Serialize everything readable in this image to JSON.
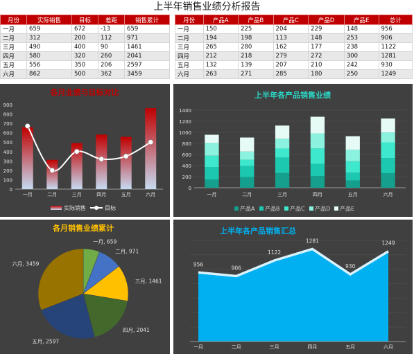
{
  "report_title": "上半年销售业绩分析报告",
  "table1": {
    "headers": [
      "月份",
      "实际销售",
      "目标",
      "差距",
      "销售累计"
    ],
    "rows": [
      [
        "一月",
        "659",
        "672",
        "-13",
        "659"
      ],
      [
        "二月",
        "312",
        "200",
        "112",
        "971"
      ],
      [
        "三月",
        "490",
        "400",
        "90",
        "1461"
      ],
      [
        "四月",
        "580",
        "320",
        "260",
        "2041"
      ],
      [
        "五月",
        "556",
        "350",
        "206",
        "2597"
      ],
      [
        "六月",
        "862",
        "500",
        "362",
        "3459"
      ]
    ]
  },
  "table2": {
    "headers": [
      "月份",
      "产品A",
      "产品B",
      "产品C",
      "产品D",
      "产品E",
      "总计"
    ],
    "rows": [
      [
        "一月",
        "150",
        "225",
        "204",
        "229",
        "148",
        "956"
      ],
      [
        "二月",
        "194",
        "198",
        "113",
        "148",
        "253",
        "906"
      ],
      [
        "三月",
        "265",
        "280",
        "162",
        "177",
        "238",
        "1122"
      ],
      [
        "四月",
        "212",
        "218",
        "279",
        "272",
        "300",
        "1281"
      ],
      [
        "五月",
        "132",
        "139",
        "207",
        "210",
        "242",
        "930"
      ],
      [
        "六月",
        "263",
        "271",
        "285",
        "180",
        "250",
        "1249"
      ]
    ]
  },
  "chart_data": [
    {
      "type": "bar",
      "title": "各月业绩与目标对比",
      "categories": [
        "一月",
        "二月",
        "三月",
        "四月",
        "五月",
        "六月"
      ],
      "series": [
        {
          "name": "实际销售",
          "kind": "bar",
          "values": [
            659,
            312,
            490,
            580,
            556,
            862
          ]
        },
        {
          "name": "目标",
          "kind": "line",
          "values": [
            672,
            200,
            400,
            320,
            350,
            500
          ]
        }
      ],
      "ylim": [
        0,
        900
      ],
      "yticks": [
        0,
        100,
        200,
        300,
        400,
        500,
        600,
        700,
        800,
        900
      ],
      "legend": "bottom",
      "colors": {
        "bar_top": "#c00000",
        "bar_bottom": "#c6dbf2",
        "line": "#ffffff",
        "title": "#c00000"
      }
    },
    {
      "type": "bar",
      "stacked": true,
      "title": "上半年各产品销售业绩",
      "categories": [
        "一月",
        "二月",
        "三月",
        "四月",
        "五月",
        "六月"
      ],
      "series": [
        {
          "name": "产品A",
          "values": [
            150,
            194,
            265,
            212,
            132,
            263
          ]
        },
        {
          "name": "产品B",
          "values": [
            225,
            198,
            280,
            218,
            139,
            271
          ]
        },
        {
          "name": "产品C",
          "values": [
            204,
            113,
            162,
            279,
            207,
            285
          ]
        },
        {
          "name": "产品D",
          "values": [
            229,
            148,
            177,
            272,
            210,
            180
          ]
        },
        {
          "name": "产品E",
          "values": [
            148,
            253,
            238,
            300,
            242,
            250
          ]
        }
      ],
      "ylim": [
        0,
        1400
      ],
      "yticks": [
        0,
        200,
        400,
        600,
        800,
        1000,
        1200,
        1400
      ],
      "legend": "bottom",
      "colors": [
        "#14a08c",
        "#1cc8b0",
        "#3ee8cc",
        "#8af2de",
        "#e6fbf6"
      ],
      "title_color": "#2bd6c6"
    },
    {
      "type": "pie",
      "title": "各月销售业绩累计",
      "categories": [
        "一月",
        "二月",
        "三月",
        "四月",
        "五月",
        "六月"
      ],
      "values": [
        659,
        971,
        1461,
        2041,
        2597,
        3459
      ],
      "labels": [
        "一月, 659",
        "二月, 971",
        "三月, 1461",
        "四月, 2041",
        "五月, 2597",
        "六月, 3459"
      ],
      "colors": [
        "#70ad47",
        "#4472c4",
        "#ffc000",
        "#43682b",
        "#264478",
        "#997300"
      ],
      "title_color": "#ffc000"
    },
    {
      "type": "area",
      "title": "上半年各产品销售汇总",
      "categories": [
        "一月",
        "二月",
        "三月",
        "四月",
        "五月",
        "六月"
      ],
      "values": [
        956,
        906,
        1122,
        1281,
        930,
        1249
      ],
      "data_labels": [
        "956",
        "906",
        "1122",
        "1281",
        "930",
        "1249"
      ],
      "colors": {
        "fill": "#00b0f0",
        "line": "#d9f2ff",
        "title": "#00b0f0"
      }
    }
  ]
}
